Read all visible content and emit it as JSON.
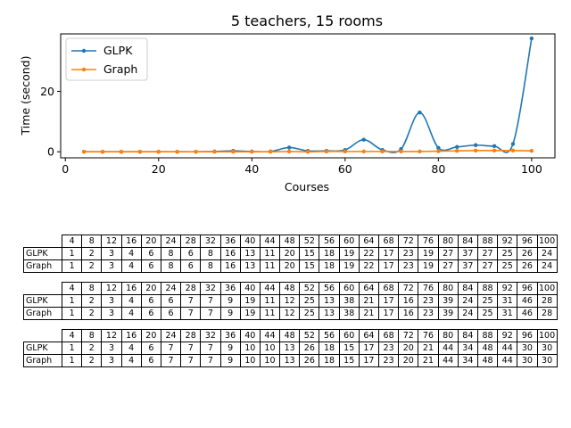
{
  "chart_data": {
    "type": "line",
    "title": "5 teachers, 15 rooms",
    "xlabel": "Courses",
    "ylabel": "Time (second)",
    "xlim": [
      -1,
      105
    ],
    "ylim": [
      -2,
      39
    ],
    "xticks": [
      0,
      20,
      40,
      60,
      80,
      100
    ],
    "yticks": [
      0,
      20
    ],
    "grid": false,
    "legend": "top-left",
    "series": [
      {
        "name": "GLPK",
        "color": "#1f77b4",
        "x": [
          4,
          8,
          12,
          16,
          20,
          24,
          28,
          32,
          36,
          40,
          44,
          48,
          52,
          56,
          60,
          64,
          68,
          72,
          76,
          80,
          84,
          88,
          92,
          96,
          100
        ],
        "y": [
          0.0,
          0.0,
          0.0,
          0.0,
          0.0,
          0.0,
          0.0,
          0.1,
          0.3,
          0.1,
          0.1,
          1.4,
          0.3,
          0.3,
          0.6,
          4.0,
          0.6,
          0.9,
          13.0,
          1.3,
          1.6,
          2.2,
          1.9,
          2.6,
          37.5
        ]
      },
      {
        "name": "Graph",
        "color": "#ff7f0e",
        "x": [
          4,
          8,
          12,
          16,
          20,
          24,
          28,
          32,
          36,
          40,
          44,
          48,
          52,
          56,
          60,
          64,
          68,
          72,
          76,
          80,
          84,
          88,
          92,
          96,
          100
        ],
        "y": [
          0.0,
          0.0,
          0.0,
          0.0,
          0.0,
          0.0,
          0.0,
          0.0,
          0.0,
          0.0,
          0.0,
          0.1,
          0.0,
          0.1,
          0.1,
          0.1,
          0.1,
          0.1,
          0.1,
          0.2,
          0.3,
          0.4,
          0.4,
          0.4,
          0.3
        ]
      }
    ]
  },
  "tables": [
    {
      "header": [
        "4",
        "8",
        "12",
        "16",
        "20",
        "24",
        "28",
        "32",
        "36",
        "40",
        "44",
        "48",
        "52",
        "56",
        "60",
        "64",
        "68",
        "72",
        "76",
        "80",
        "84",
        "88",
        "92",
        "96",
        "100"
      ],
      "rows": [
        {
          "label": "GLPK",
          "values": [
            "1",
            "2",
            "3",
            "4",
            "6",
            "8",
            "6",
            "8",
            "16",
            "13",
            "11",
            "20",
            "15",
            "18",
            "19",
            "22",
            "17",
            "23",
            "19",
            "27",
            "37",
            "27",
            "25",
            "26",
            "24"
          ]
        },
        {
          "label": "Graph",
          "values": [
            "1",
            "2",
            "3",
            "4",
            "6",
            "8",
            "6",
            "8",
            "16",
            "13",
            "11",
            "20",
            "15",
            "18",
            "19",
            "22",
            "17",
            "23",
            "19",
            "27",
            "37",
            "27",
            "25",
            "26",
            "24"
          ]
        }
      ]
    },
    {
      "header": [
        "4",
        "8",
        "12",
        "16",
        "20",
        "24",
        "28",
        "32",
        "36",
        "40",
        "44",
        "48",
        "52",
        "56",
        "60",
        "64",
        "68",
        "72",
        "76",
        "80",
        "84",
        "88",
        "92",
        "96",
        "100"
      ],
      "rows": [
        {
          "label": "GLPK",
          "values": [
            "1",
            "2",
            "3",
            "4",
            "6",
            "6",
            "7",
            "7",
            "9",
            "19",
            "11",
            "12",
            "25",
            "13",
            "38",
            "21",
            "17",
            "16",
            "23",
            "39",
            "24",
            "25",
            "31",
            "46",
            "28"
          ]
        },
        {
          "label": "Graph",
          "values": [
            "1",
            "2",
            "3",
            "4",
            "6",
            "6",
            "7",
            "7",
            "9",
            "19",
            "11",
            "12",
            "25",
            "13",
            "38",
            "21",
            "17",
            "16",
            "23",
            "39",
            "24",
            "25",
            "31",
            "46",
            "28"
          ]
        }
      ]
    },
    {
      "header": [
        "4",
        "8",
        "12",
        "16",
        "20",
        "24",
        "28",
        "32",
        "36",
        "40",
        "44",
        "48",
        "52",
        "56",
        "60",
        "64",
        "68",
        "72",
        "76",
        "80",
        "84",
        "88",
        "92",
        "96",
        "100"
      ],
      "rows": [
        {
          "label": "GLPK",
          "values": [
            "1",
            "2",
            "3",
            "4",
            "6",
            "7",
            "7",
            "7",
            "9",
            "10",
            "10",
            "13",
            "26",
            "18",
            "15",
            "17",
            "23",
            "20",
            "21",
            "44",
            "34",
            "48",
            "44",
            "30",
            "30"
          ]
        },
        {
          "label": "Graph",
          "values": [
            "1",
            "2",
            "3",
            "4",
            "6",
            "7",
            "7",
            "7",
            "9",
            "10",
            "10",
            "13",
            "26",
            "18",
            "15",
            "17",
            "23",
            "20",
            "21",
            "44",
            "34",
            "48",
            "44",
            "30",
            "30"
          ]
        }
      ]
    }
  ]
}
